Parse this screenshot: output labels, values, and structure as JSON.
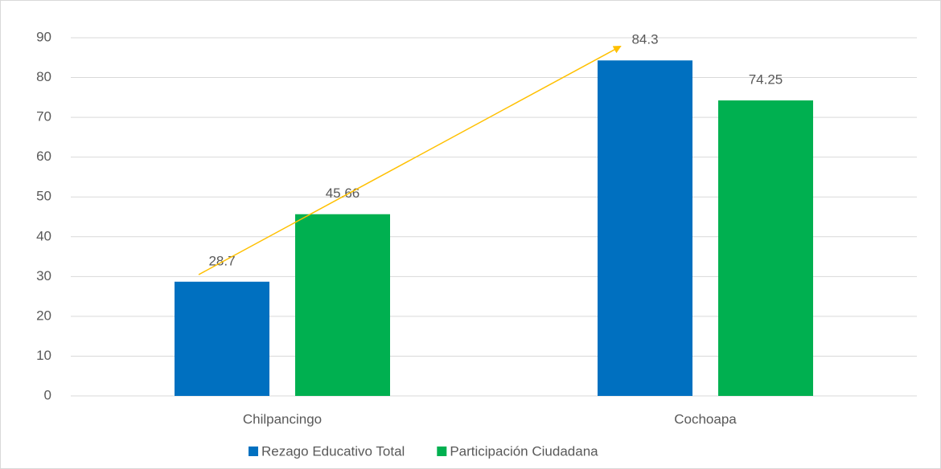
{
  "chart_data": {
    "type": "bar",
    "categories": [
      "Chilpancingo",
      "Cochoapa"
    ],
    "series": [
      {
        "name": "Rezago Educativo Total",
        "color": "#0070c0",
        "values": [
          28.7,
          84.3
        ]
      },
      {
        "name": "Participación Ciudadana",
        "color": "#00b050",
        "values": [
          45.66,
          74.25
        ]
      }
    ],
    "ylim": [
      0,
      90
    ],
    "yticks": [
      0,
      10,
      20,
      30,
      40,
      50,
      60,
      70,
      80,
      90
    ],
    "grid": true,
    "legend": "bottom"
  }
}
